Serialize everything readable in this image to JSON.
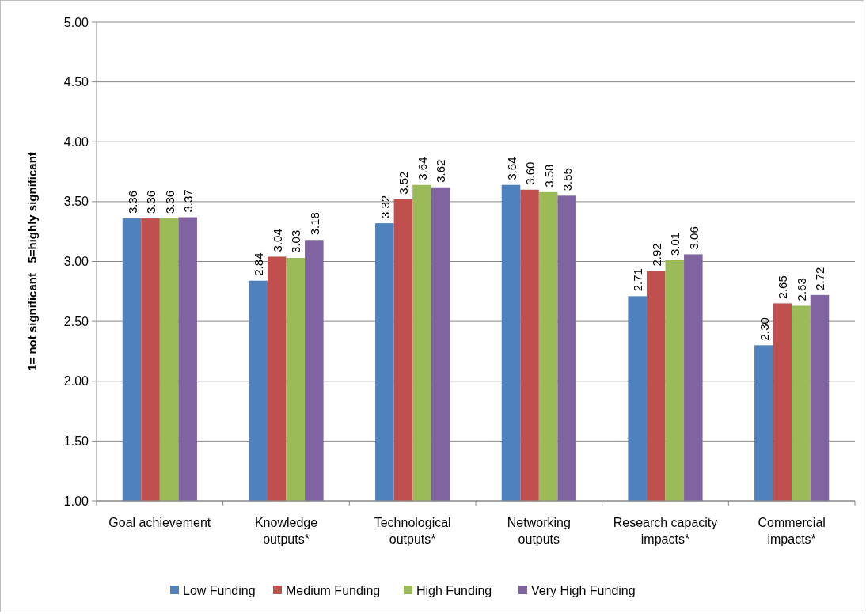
{
  "chart_data": {
    "type": "bar",
    "ylabel": "1= not significant   5=highly significant",
    "categories": [
      "Goal achievement",
      "Knowledge outputs*",
      "Technological outputs*",
      "Networking outputs",
      "Research capacity impacts*",
      "Commercial impacts*"
    ],
    "series": [
      {
        "name": "Low Funding",
        "color": "#4f81bd",
        "values": [
          3.36,
          2.84,
          3.32,
          3.64,
          2.71,
          2.3
        ],
        "value_labels": [
          "3.36",
          "2.84",
          "3.32",
          "3.64",
          "2.71",
          "2.30"
        ]
      },
      {
        "name": "Medium Funding",
        "color": "#c0504d",
        "values": [
          3.36,
          3.04,
          3.52,
          3.6,
          2.92,
          2.65
        ],
        "value_labels": [
          "3.36",
          "3.04",
          "3.52",
          "3.60",
          "2.92",
          "2.65"
        ]
      },
      {
        "name": "High Funding",
        "color": "#9bbb59",
        "values": [
          3.36,
          3.03,
          3.64,
          3.58,
          3.01,
          2.63
        ],
        "value_labels": [
          "3.36",
          "3.03",
          "3.64",
          "3.58",
          "3.01",
          "2.63"
        ]
      },
      {
        "name": "Very High Funding",
        "color": "#8064a2",
        "values": [
          3.37,
          3.18,
          3.62,
          3.55,
          3.06,
          2.72
        ],
        "value_labels": [
          "3.37",
          "3.18",
          "3.62",
          "3.55",
          "3.06",
          "2.72"
        ]
      }
    ],
    "ylim": [
      1,
      5
    ],
    "yticks": [
      {
        "value": 1,
        "label": "1.00"
      },
      {
        "value": 1.5,
        "label": "1.50"
      },
      {
        "value": 2,
        "label": "2.00"
      },
      {
        "value": 2.5,
        "label": "2.50"
      },
      {
        "value": 3,
        "label": "3.00"
      },
      {
        "value": 3.5,
        "label": "3.50"
      },
      {
        "value": 4,
        "label": "4.00"
      },
      {
        "value": 4.5,
        "label": "4.50"
      },
      {
        "value": 5,
        "label": "5.00"
      }
    ],
    "grid": "y",
    "legend": "bottom"
  }
}
